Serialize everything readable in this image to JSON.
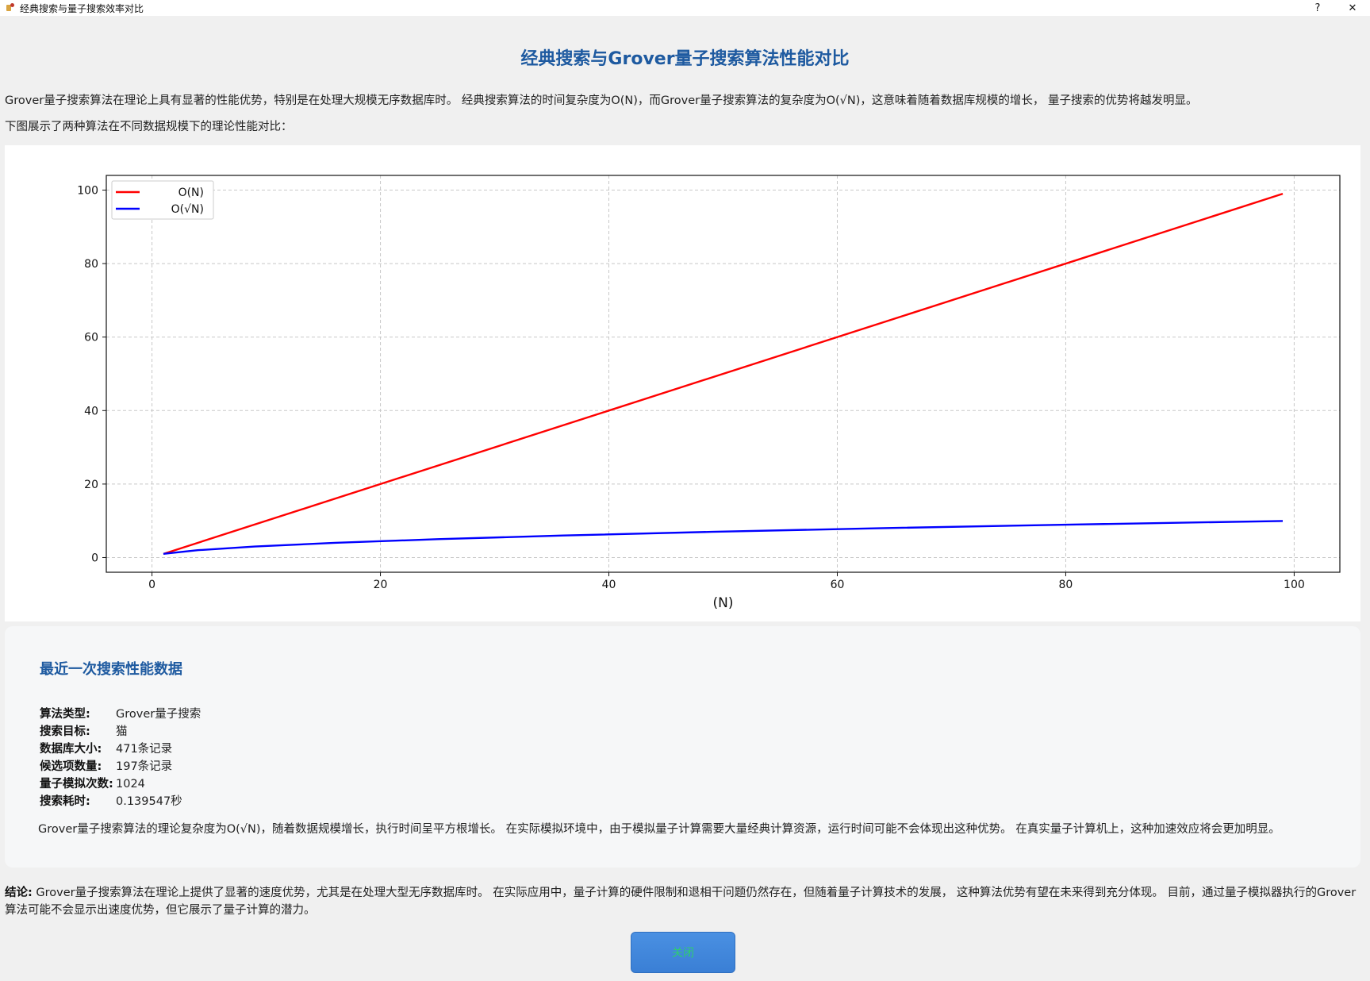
{
  "window": {
    "title": "经典搜索与量子搜索效率对比",
    "help_label": "?",
    "close_label": "✕"
  },
  "header": {
    "title": "经典搜索与Grover量子搜索算法性能对比"
  },
  "intro": {
    "paragraph": "Grover量子搜索算法在理论上具有显著的性能优势，特别是在处理大规模无序数据库时。 经典搜索算法的时间复杂度为O(N)，而Grover量子搜索算法的复杂度为O(√N)，这意味着随着数据库规模的增长， 量子搜索的优势将越发明显。",
    "chart_caption": "下图展示了两种算法在不同数据规模下的理论性能对比："
  },
  "chart_data": {
    "type": "line",
    "title": "",
    "xlabel": "(N)",
    "ylabel": "",
    "xlim": [
      -4,
      104
    ],
    "ylim": [
      -4,
      104
    ],
    "xticks": [
      0,
      20,
      40,
      60,
      80,
      100
    ],
    "yticks": [
      0,
      20,
      40,
      60,
      80,
      100
    ],
    "grid": true,
    "legend": "top-left",
    "series": [
      {
        "name": "O(N)",
        "color": "#ff0000",
        "x": [
          1,
          99
        ],
        "y": [
          1,
          99
        ]
      },
      {
        "name": "O(√N)",
        "color": "#0000ff",
        "x": [
          1,
          4,
          9,
          16,
          25,
          36,
          49,
          64,
          81,
          99
        ],
        "y": [
          1,
          2,
          3,
          4,
          5,
          6,
          7,
          8,
          9,
          9.95
        ]
      }
    ]
  },
  "performance": {
    "title": "最近一次搜索性能数据",
    "rows": [
      {
        "label": "算法类型:",
        "value": "Grover量子搜索"
      },
      {
        "label": "搜索目标:",
        "value": "猫"
      },
      {
        "label": "数据库大小:",
        "value": "471条记录"
      },
      {
        "label": "候选项数量:",
        "value": "197条记录"
      },
      {
        "label": "量子模拟次数:",
        "value": "1024"
      },
      {
        "label": "搜索耗时:",
        "value": "0.139547秒"
      }
    ],
    "note": "Grover量子搜索算法的理论复杂度为O(√N)，随着数据规模增长，执行时间呈平方根增长。 在实际模拟环境中，由于模拟量子计算需要大量经典计算资源，运行时间可能不会体现出这种优势。 在真实量子计算机上，这种加速效应将会更加明显。"
  },
  "conclusion": {
    "label": "结论:",
    "text": "Grover量子搜索算法在理论上提供了显著的速度优势，尤其是在处理大型无序数据库时。 在实际应用中，量子计算的硬件限制和退相干问题仍然存在，但随着量子计算技术的发展， 这种算法优势有望在未来得到充分体现。 目前，通过量子模拟器执行的Grover算法可能不会显示出速度优势，但它展示了量子计算的潜力。"
  },
  "footer": {
    "close_label": "关闭"
  }
}
